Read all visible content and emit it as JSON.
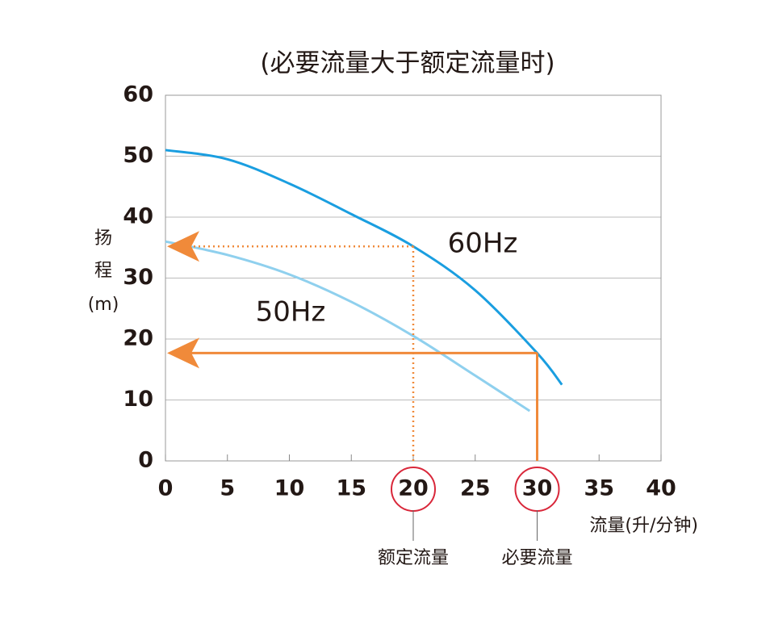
{
  "chart_data": {
    "type": "line",
    "title": "(必要流量大于额定流量时)",
    "ylabel": [
      "扬",
      "程",
      "(m)"
    ],
    "xlabel": "流量(升/分钟)",
    "xlim": [
      0,
      40
    ],
    "xticks": [
      0,
      5,
      10,
      15,
      20,
      25,
      30,
      35,
      40
    ],
    "ylim": [
      0,
      60
    ],
    "yticks": [
      0,
      10,
      20,
      30,
      40,
      50,
      60
    ],
    "grid": true,
    "series": [
      {
        "name": "60Hz",
        "color": "#1a9ee0",
        "x": [
          0,
          5,
          10,
          15,
          20,
          25,
          30,
          32
        ],
        "values": [
          51,
          49.5,
          45.5,
          40.5,
          35.2,
          28,
          17.7,
          12.5
        ]
      },
      {
        "name": "50Hz",
        "color": "#8fd0ee",
        "x": [
          0,
          5,
          10,
          15,
          20,
          25,
          29.4
        ],
        "values": [
          36,
          33.8,
          30.6,
          26.1,
          20.5,
          14,
          8.2
        ]
      }
    ],
    "markers": [
      {
        "x": 20,
        "y": 35.2,
        "label": "额定流量",
        "style": "dotted"
      },
      {
        "x": 30,
        "y": 17.7,
        "label": "必要流量",
        "style": "solid"
      }
    ],
    "marker_color": "#f08a3a",
    "highlight_color": "#d9273a"
  }
}
